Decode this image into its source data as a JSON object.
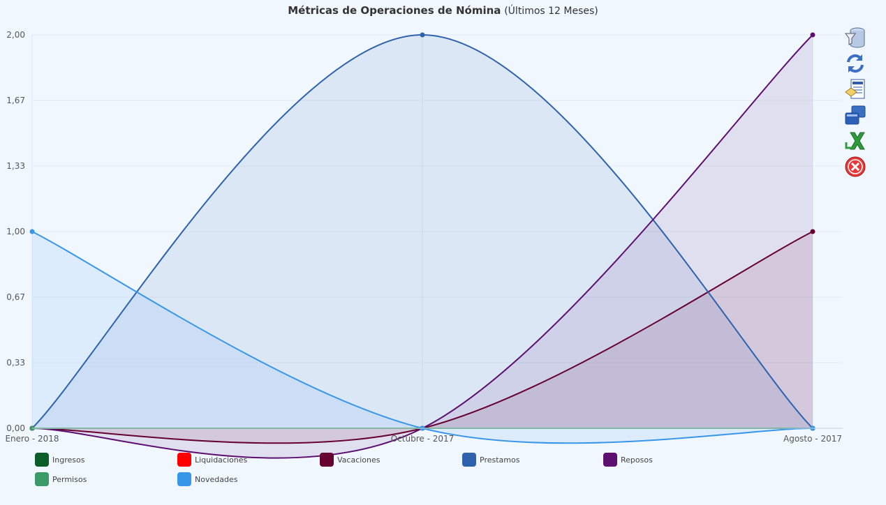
{
  "title": {
    "main": "Métricas de Operaciones de Nómina",
    "subtitle": "(Últimos 12 Meses)"
  },
  "toolbar": {
    "icons": [
      "filter-database-icon",
      "refresh-icon",
      "report-icon",
      "windows-icon",
      "excel-export-icon",
      "close-icon"
    ]
  },
  "chart_data": {
    "type": "area",
    "title": "Métricas de Operaciones de Nómina (Últimos 12 Meses)",
    "categories": [
      "Enero - 2018",
      "Octubre - 2017",
      "Agosto - 2017"
    ],
    "ylim": [
      0,
      2
    ],
    "yticks": [
      "0,00",
      "0,33",
      "0,67",
      "1,00",
      "1,33",
      "1,67",
      "2,00"
    ],
    "grid": true,
    "legend_position": "bottom",
    "series": [
      {
        "name": "Ingresos",
        "color": "#0b5e28",
        "values": [
          0,
          0,
          0
        ]
      },
      {
        "name": "Liquidaciones",
        "color": "#ff0000",
        "values": [
          0,
          0,
          0
        ]
      },
      {
        "name": "Vacaciones",
        "color": "#650030",
        "values": [
          0,
          0,
          1
        ]
      },
      {
        "name": "Prestamos",
        "color": "#2e62ad",
        "values": [
          0,
          2,
          0
        ]
      },
      {
        "name": "Reposos",
        "color": "#5c0f6e",
        "values": [
          0,
          0,
          2
        ]
      },
      {
        "name": "Permisos",
        "color": "#3a9a68",
        "values": [
          0,
          0,
          0
        ]
      },
      {
        "name": "Novedades",
        "color": "#3896e8",
        "values": [
          1,
          0,
          0
        ]
      }
    ]
  }
}
